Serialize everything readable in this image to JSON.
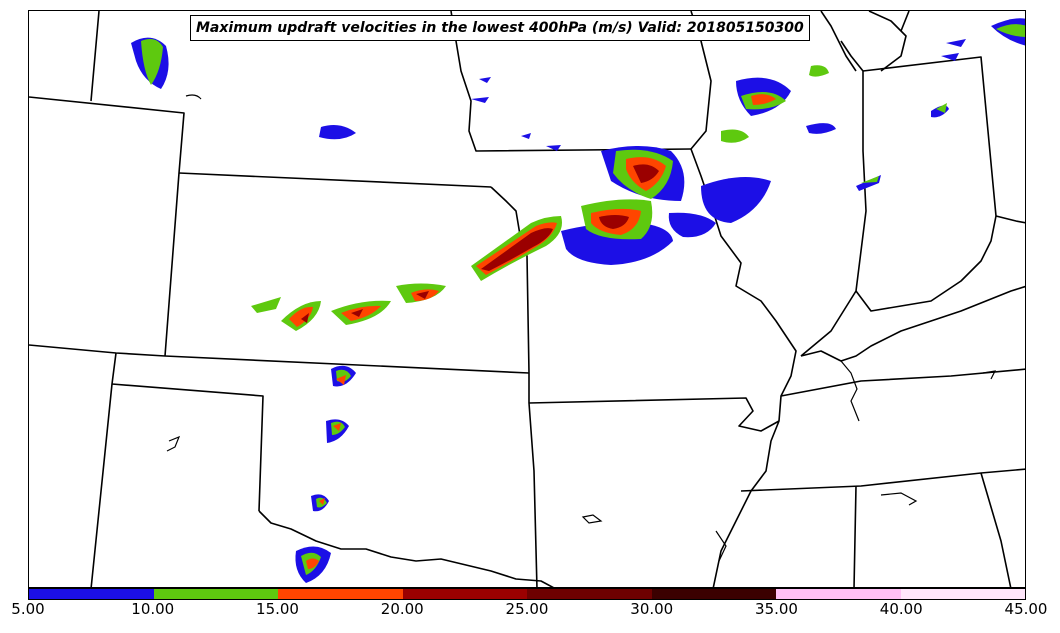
{
  "title": "Maximum updraft velocities in the lowest 400hPa (m/s) Valid: 201805150300",
  "colorbar": {
    "ticks": [
      "5.00",
      "10.00",
      "15.00",
      "20.00",
      "25.00",
      "30.00",
      "35.00",
      "40.00",
      "45.00"
    ],
    "colors": [
      "#1c0fe6",
      "#5ec90f",
      "#ff4500",
      "#9b0000",
      "#6e0000",
      "#3b0000",
      "#ffc0f5",
      "#ffe6fb"
    ]
  },
  "field_colors": {
    "5-10": "#1c0fe6",
    "10-15": "#5ec90f",
    "15-20": "#ff4500",
    "20-25": "#9b0000"
  }
}
